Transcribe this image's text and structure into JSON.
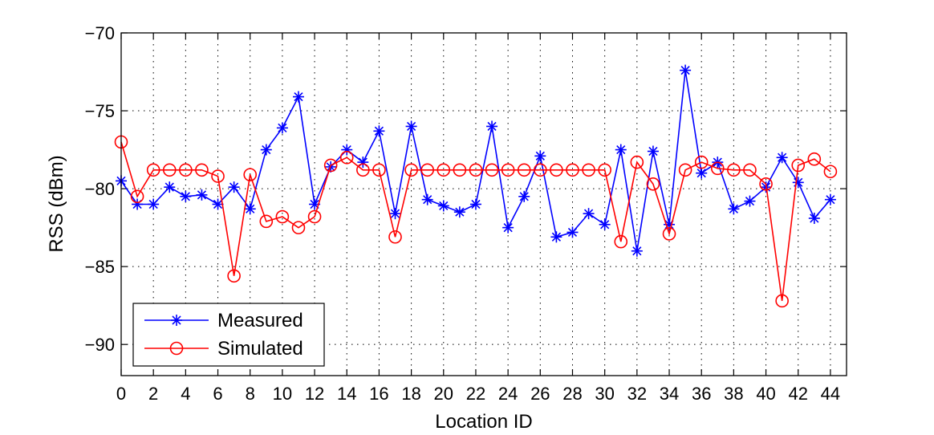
{
  "chart_data": {
    "type": "line",
    "xlabel": "Location ID",
    "ylabel": "RSS (dBm)",
    "xlim": [
      0,
      45
    ],
    "ylim": [
      -92,
      -70
    ],
    "x_ticks": [
      0,
      2,
      4,
      6,
      8,
      10,
      12,
      14,
      16,
      18,
      20,
      22,
      24,
      26,
      28,
      30,
      32,
      34,
      36,
      38,
      40,
      42,
      44
    ],
    "y_ticks": [
      -90,
      -85,
      -80,
      -75,
      -70
    ],
    "grid": true,
    "legend_position": "bottom-left",
    "x": [
      0,
      1,
      2,
      3,
      4,
      5,
      6,
      7,
      8,
      9,
      10,
      11,
      12,
      13,
      14,
      15,
      16,
      17,
      18,
      19,
      20,
      21,
      22,
      23,
      24,
      25,
      26,
      27,
      28,
      29,
      30,
      31,
      32,
      33,
      34,
      35,
      36,
      37,
      38,
      39,
      40,
      41,
      42,
      43,
      44
    ],
    "series": [
      {
        "name": "Measured",
        "color": "#0000ff",
        "marker": "asterisk",
        "values": [
          -79.5,
          -81.0,
          -81.0,
          -79.9,
          -80.5,
          -80.4,
          -81.0,
          -79.9,
          -81.3,
          -77.5,
          -76.1,
          -74.1,
          -81.0,
          -78.6,
          -77.5,
          -78.3,
          -76.3,
          -81.6,
          -76.0,
          -80.7,
          -81.1,
          -81.5,
          -81.0,
          -76.0,
          -82.5,
          -80.5,
          -77.9,
          -83.1,
          -82.8,
          -81.6,
          -82.3,
          -77.5,
          -84.0,
          -77.6,
          -82.3,
          -72.4,
          -79.0,
          -78.3,
          -81.3,
          -80.8,
          -79.9,
          -78.0,
          -79.6,
          -81.9,
          -80.7
        ]
      },
      {
        "name": "Simulated",
        "color": "#ff0000",
        "marker": "circle",
        "values": [
          -77.0,
          -80.5,
          -78.8,
          -78.8,
          -78.8,
          -78.8,
          -79.2,
          -85.6,
          -79.1,
          -82.1,
          -81.8,
          -82.5,
          -81.8,
          -78.5,
          -78.0,
          -78.8,
          -78.8,
          -83.1,
          -78.8,
          -78.8,
          -78.8,
          -78.8,
          -78.8,
          -78.8,
          -78.8,
          -78.8,
          -78.8,
          -78.8,
          -78.8,
          -78.8,
          -78.8,
          -83.4,
          -78.3,
          -79.7,
          -82.9,
          -78.8,
          -78.3,
          -78.7,
          -78.8,
          -78.8,
          -79.7,
          -87.2,
          -78.5,
          -78.1,
          -78.9
        ]
      }
    ]
  }
}
